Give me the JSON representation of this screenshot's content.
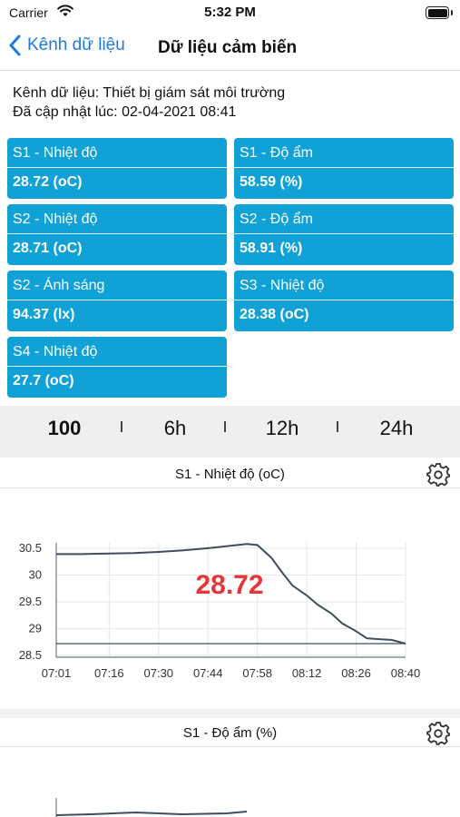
{
  "status_bar": {
    "carrier": "Carrier",
    "time": "5:32 PM"
  },
  "nav": {
    "back_label": "Kênh dữ liệu",
    "title": "Dữ liệu cảm biến"
  },
  "info": {
    "channel": "Kênh dữ liệu: Thiết bị giám sát môi trường",
    "updated": "Đã cập nhật lúc: 02-04-2021 08:41"
  },
  "sensors": [
    {
      "name": "S1 - Nhiệt độ",
      "value": "28.72 (oC)"
    },
    {
      "name": "S1 - Độ ẩm",
      "value": "58.59 (%)"
    },
    {
      "name": "S2 - Nhiệt độ",
      "value": "28.71 (oC)"
    },
    {
      "name": "S2 - Độ ẩm",
      "value": "58.91 (%)"
    },
    {
      "name": "S2 - Ánh sáng",
      "value": "94.37 (lx)"
    },
    {
      "name": "S3 - Nhiệt độ",
      "value": "28.38 (oC)"
    },
    {
      "name": "S4 - Nhiệt độ",
      "value": "27.7 (oC)"
    }
  ],
  "time_ranges": {
    "options": [
      "100",
      "6h",
      "12h",
      "24h"
    ],
    "selected": "100"
  },
  "charts": [
    {
      "title": "S1 - Nhiệt độ (oC)",
      "current_value": "28.72"
    },
    {
      "title": "S1 - Độ ẩm (%)"
    }
  ],
  "colors": {
    "tile": "#10a2d6",
    "accent": "#1f7ae0",
    "value_highlight": "#e8353a",
    "line": "#3d4f5c"
  },
  "chart_data": [
    {
      "type": "line",
      "title": "S1 - Nhiệt độ (oC)",
      "y_ticks": [
        "30.5",
        "30",
        "29.5",
        "29",
        "28.5"
      ],
      "x_ticks": [
        "07:01",
        "07:16",
        "07:30",
        "07:44",
        "07:58",
        "08:12",
        "08:26",
        "08:40"
      ],
      "ylim": [
        28.5,
        30.6
      ],
      "reference_line": 28.72,
      "series": [
        {
          "x": [
            "07:01",
            "07:08",
            "07:16",
            "07:23",
            "07:30",
            "07:37",
            "07:44",
            "07:51",
            "07:55",
            "07:58",
            "08:02",
            "08:05",
            "08:08",
            "08:12",
            "08:15",
            "08:19",
            "08:22",
            "08:26",
            "08:29",
            "08:33",
            "08:36",
            "08:40"
          ],
          "values": [
            30.39,
            30.39,
            30.4,
            30.41,
            30.43,
            30.46,
            30.5,
            30.55,
            30.58,
            30.56,
            30.32,
            30.05,
            29.8,
            29.62,
            29.45,
            29.28,
            29.1,
            28.95,
            28.82,
            28.8,
            28.79,
            28.72
          ]
        }
      ],
      "grid": true
    },
    {
      "type": "line",
      "title": "S1 - Độ ẩm (%)",
      "grid": true
    }
  ]
}
